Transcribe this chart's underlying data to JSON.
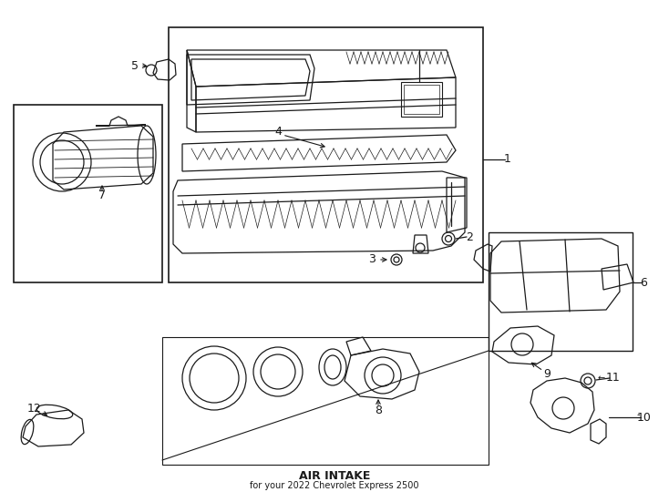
{
  "title": "AIR INTAKE",
  "subtitle": "for your 2022 Chevrolet Express 2500",
  "bg": "#ffffff",
  "lc": "#1a1a1a",
  "fig_w": 7.34,
  "fig_h": 5.4,
  "dpi": 100
}
